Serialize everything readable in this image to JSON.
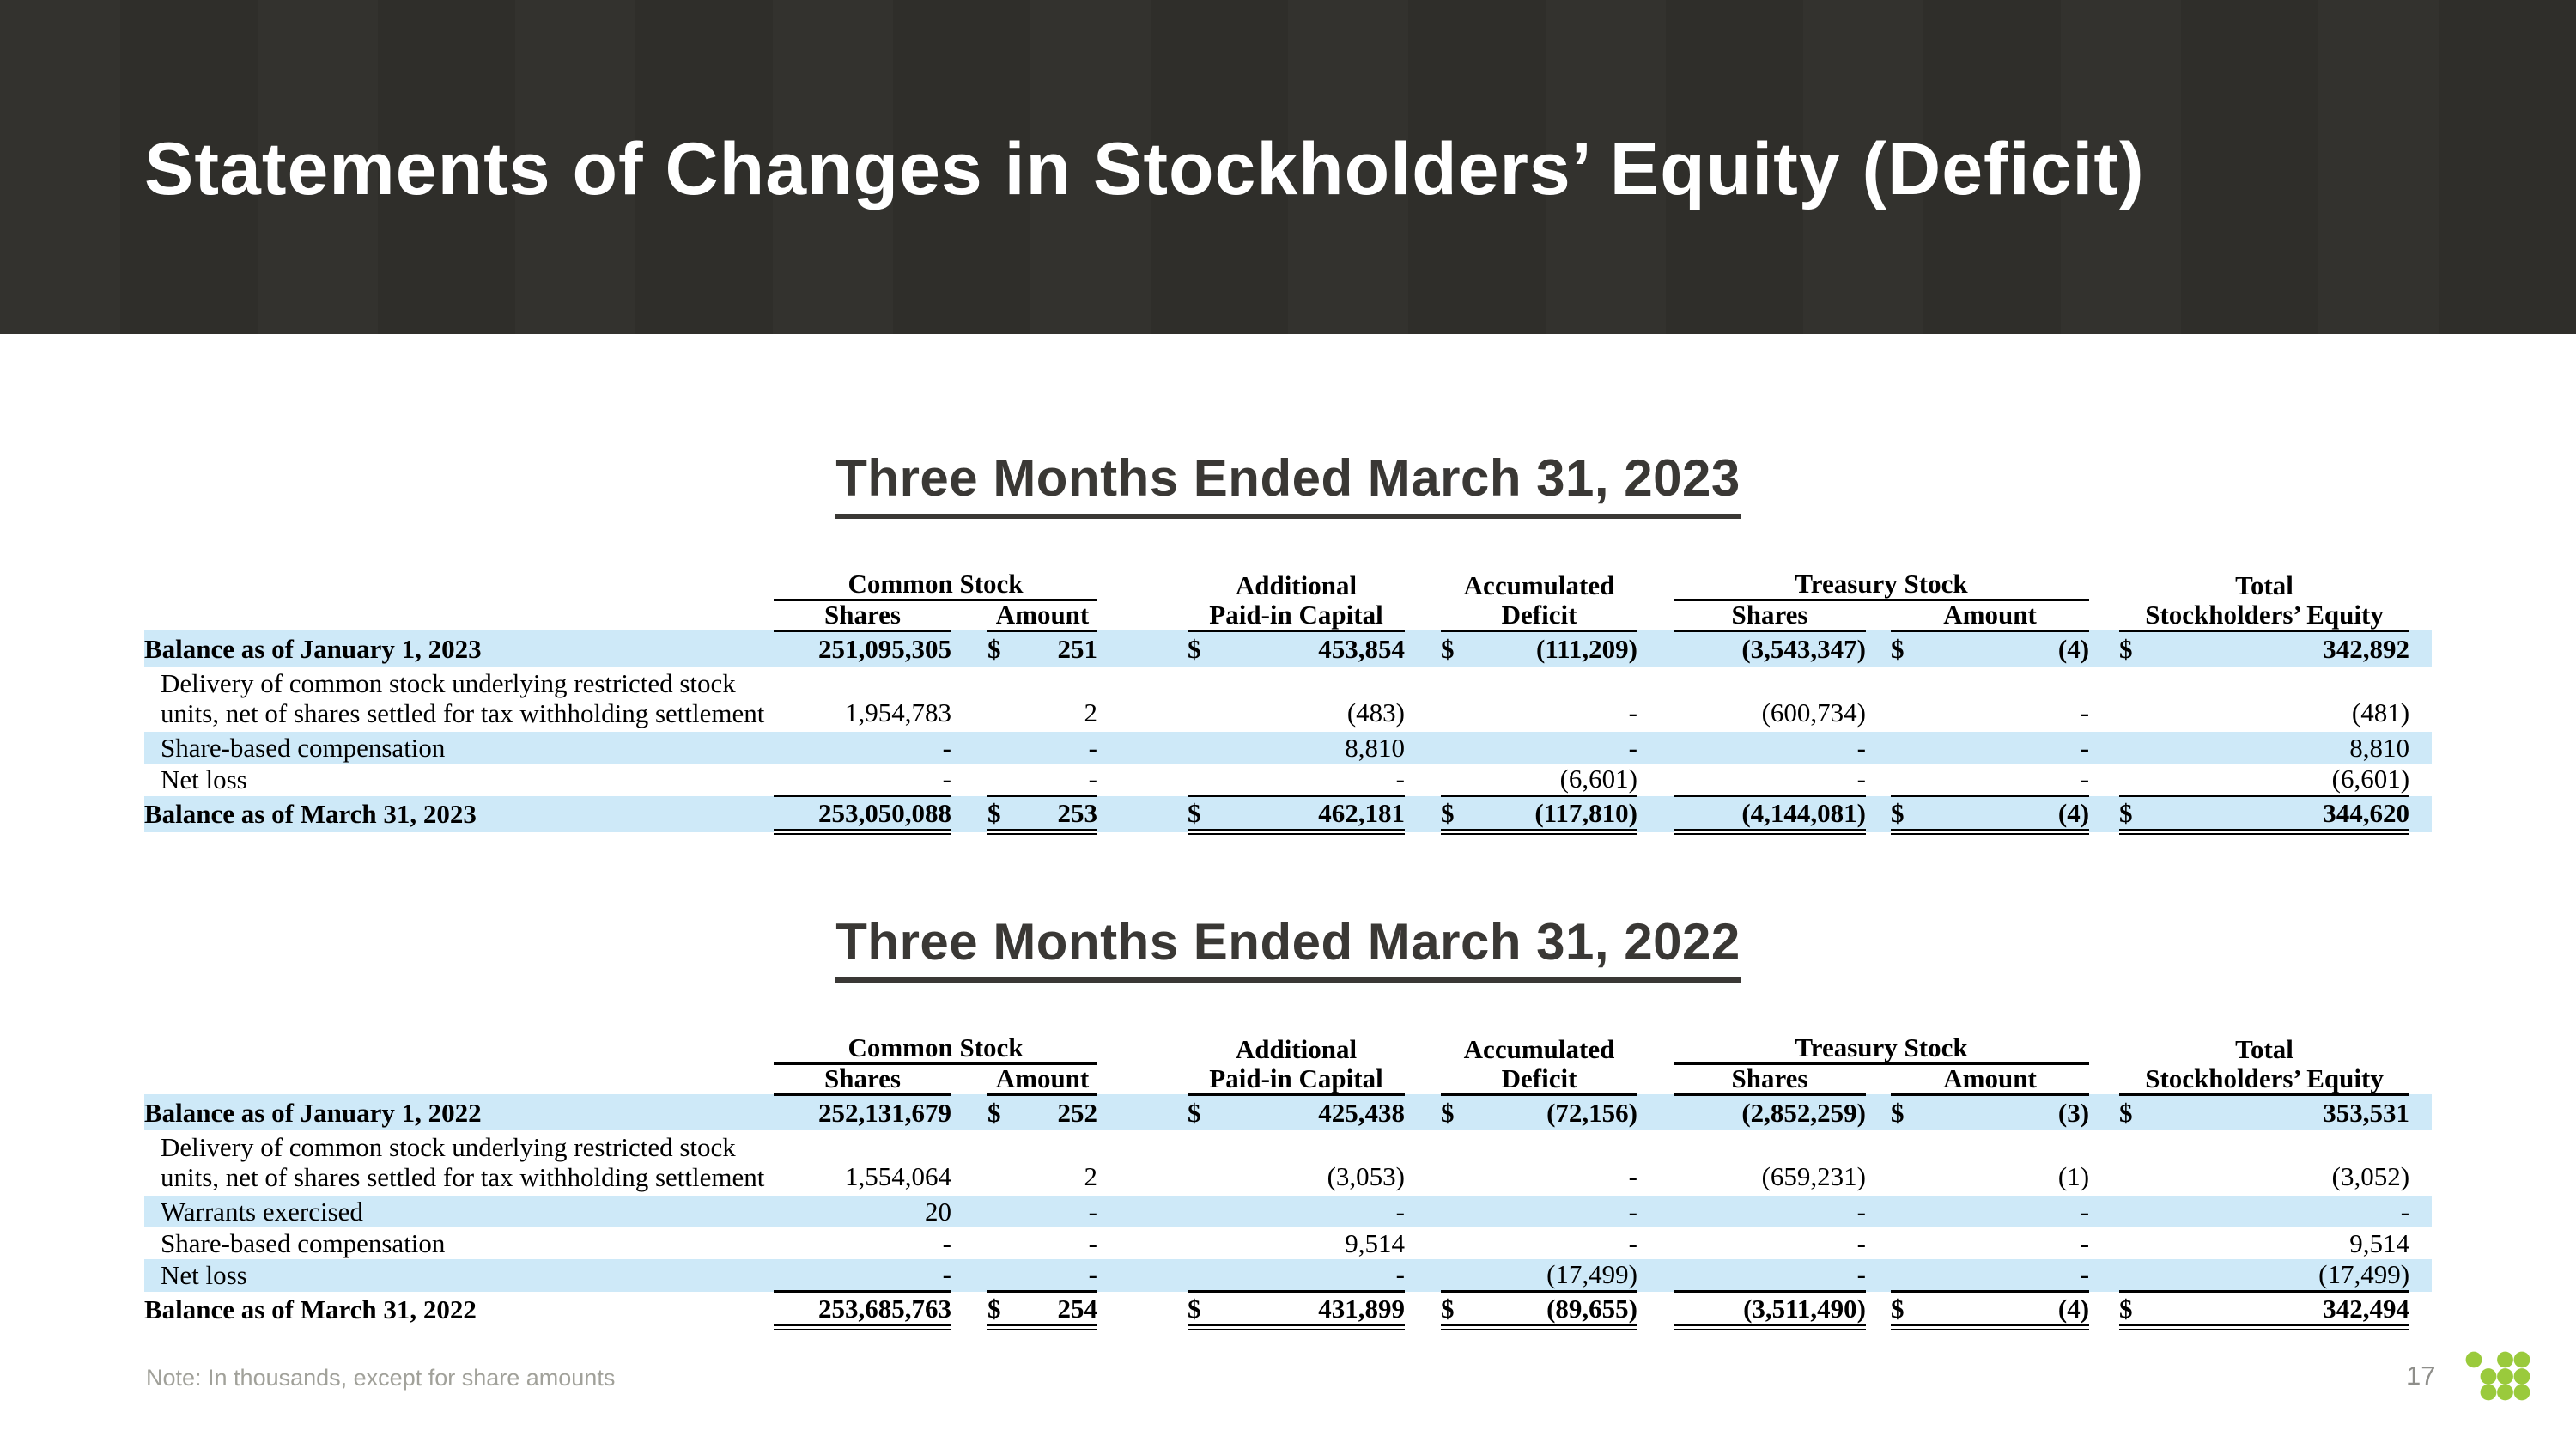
{
  "slide": {
    "title": "Statements of Changes in Stockholders’ Equity (Deficit)",
    "colors": {
      "header_band": "#302f2b",
      "row_highlight": "#cee9f8",
      "heading_text": "#3a3835",
      "rule_black": "#000000",
      "note_text": "#a1a19a",
      "logo_green": "#9aca3c"
    }
  },
  "footer": {
    "note": "Note: In thousands, except for share amounts",
    "page_number": "17",
    "logo_icon": "green-dots-grid-logo"
  },
  "table_header": {
    "groups": [
      {
        "label": "Common Stock",
        "span": 2
      },
      {
        "label": "Additional",
        "span": 1
      },
      {
        "label": "Accumulated",
        "span": 1
      },
      {
        "label": "Treasury Stock",
        "span": 2
      },
      {
        "label": "Total",
        "span": 1
      }
    ],
    "columns": [
      "Shares",
      "Amount",
      "Paid-in Capital",
      "Deficit",
      "Shares",
      "Amount",
      "Stockholders’ Equity"
    ]
  },
  "tables": [
    {
      "heading": "Three Months Ended March 31, 2023",
      "rows": [
        {
          "label": "Balance as of January 1, 2023",
          "bold": true,
          "shaded": true,
          "cells": [
            {
              "v": "251,095,305"
            },
            {
              "d": "$",
              "v": "251"
            },
            {
              "d": "$",
              "v": "453,854"
            },
            {
              "d": "$",
              "v": "(111,209)"
            },
            {
              "v": "(3,543,347)"
            },
            {
              "d": "$",
              "v": "(4)"
            },
            {
              "d": "$",
              "v": "342,892"
            }
          ]
        },
        {
          "label": "Delivery of common stock underlying restricted stock units, net of shares settled for tax withholding settlement",
          "indent": true,
          "tall": true,
          "cells": [
            {
              "v": "1,954,783"
            },
            {
              "v": "2"
            },
            {
              "v": "(483)"
            },
            {
              "v": "-"
            },
            {
              "v": "(600,734)"
            },
            {
              "v": "-"
            },
            {
              "v": "(481)"
            }
          ]
        },
        {
          "label": "Share-based compensation",
          "indent": true,
          "shaded": true,
          "cells": [
            {
              "v": "-"
            },
            {
              "v": "-"
            },
            {
              "v": "8,810"
            },
            {
              "v": "-"
            },
            {
              "v": "-"
            },
            {
              "v": "-"
            },
            {
              "v": "8,810"
            }
          ]
        },
        {
          "label": "Net loss",
          "indent": true,
          "cells": [
            {
              "v": "-"
            },
            {
              "v": "-"
            },
            {
              "v": "-"
            },
            {
              "v": "(6,601)"
            },
            {
              "v": "-"
            },
            {
              "v": "-"
            },
            {
              "v": "(6,601)"
            }
          ]
        },
        {
          "label": "Balance as of March 31, 2023",
          "bold": true,
          "shaded": true,
          "total": true,
          "cells": [
            {
              "v": "253,050,088"
            },
            {
              "d": "$",
              "v": "253"
            },
            {
              "d": "$",
              "v": "462,181"
            },
            {
              "d": "$",
              "v": "(117,810)"
            },
            {
              "v": "(4,144,081)"
            },
            {
              "d": "$",
              "v": "(4)"
            },
            {
              "d": "$",
              "v": "344,620"
            }
          ]
        }
      ]
    },
    {
      "heading": "Three Months Ended March 31, 2022",
      "rows": [
        {
          "label": "Balance as of January 1, 2022",
          "bold": true,
          "shaded": true,
          "cells": [
            {
              "v": "252,131,679"
            },
            {
              "d": "$",
              "v": "252"
            },
            {
              "d": "$",
              "v": "425,438"
            },
            {
              "d": "$",
              "v": "(72,156)"
            },
            {
              "v": "(2,852,259)"
            },
            {
              "d": "$",
              "v": "(3)"
            },
            {
              "d": "$",
              "v": "353,531"
            }
          ]
        },
        {
          "label": "Delivery of common stock underlying restricted stock units, net of shares settled for tax withholding settlement",
          "indent": true,
          "tall": true,
          "cells": [
            {
              "v": "1,554,064"
            },
            {
              "v": "2"
            },
            {
              "v": "(3,053)"
            },
            {
              "v": "-"
            },
            {
              "v": "(659,231)"
            },
            {
              "v": "(1)"
            },
            {
              "v": "(3,052)"
            }
          ]
        },
        {
          "label": "Warrants exercised",
          "indent": true,
          "shaded": true,
          "cells": [
            {
              "v": "20"
            },
            {
              "v": "-"
            },
            {
              "v": "-"
            },
            {
              "v": "-"
            },
            {
              "v": "-"
            },
            {
              "v": "-"
            },
            {
              "v": "-"
            }
          ]
        },
        {
          "label": "Share-based compensation",
          "indent": true,
          "cells": [
            {
              "v": "-"
            },
            {
              "v": "-"
            },
            {
              "v": "9,514"
            },
            {
              "v": "-"
            },
            {
              "v": "-"
            },
            {
              "v": "-"
            },
            {
              "v": "9,514"
            }
          ]
        },
        {
          "label": "Net loss",
          "indent": true,
          "shaded": true,
          "cells": [
            {
              "v": "-"
            },
            {
              "v": "-"
            },
            {
              "v": "-"
            },
            {
              "v": "(17,499)"
            },
            {
              "v": "-"
            },
            {
              "v": "-"
            },
            {
              "v": "(17,499)"
            }
          ]
        },
        {
          "label": "Balance as of March 31, 2022",
          "bold": true,
          "total": true,
          "cells": [
            {
              "v": "253,685,763"
            },
            {
              "d": "$",
              "v": "254"
            },
            {
              "d": "$",
              "v": "431,899"
            },
            {
              "d": "$",
              "v": "(89,655)"
            },
            {
              "v": "(3,511,490)"
            },
            {
              "d": "$",
              "v": "(4)"
            },
            {
              "d": "$",
              "v": "342,494"
            }
          ]
        }
      ]
    }
  ]
}
